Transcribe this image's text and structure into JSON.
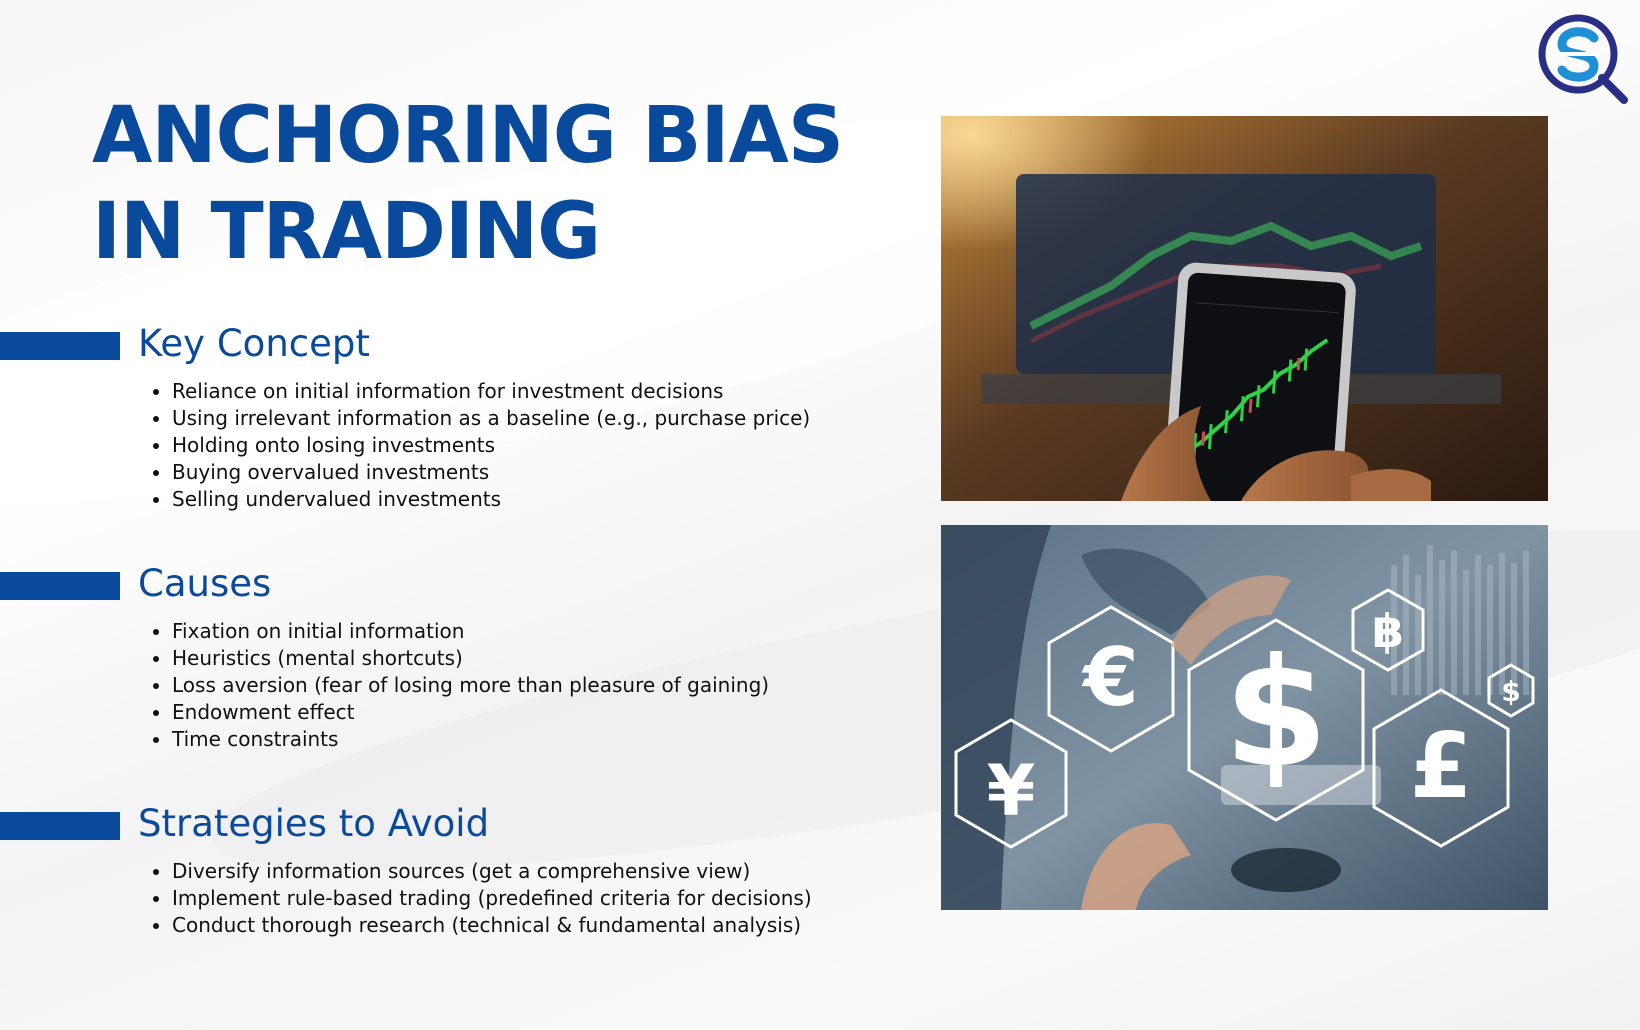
{
  "title": "ANCHORING BIAS IN TRADING",
  "sections": [
    {
      "heading": "Key Concept",
      "items": [
        "Reliance on initial information for investment decisions",
        "Using irrelevant information as a baseline (e.g., purchase price)",
        "Holding onto losing investments",
        "Buying overvalued investments",
        "Selling undervalued investments"
      ]
    },
    {
      "heading": "Causes",
      "items": [
        "Fixation on initial information",
        "Heuristics (mental shortcuts)",
        "Loss aversion (fear of losing more than pleasure of gaining)",
        "Endowment effect",
        "Time constraints"
      ]
    },
    {
      "heading": "Strategies to Avoid",
      "items": [
        "Diversify information sources (get a comprehensive view)",
        "Implement rule-based trading (predefined criteria for decisions)",
        "Conduct thorough research (technical & fundamental analysis)"
      ]
    }
  ],
  "currency_symbols": [
    "€",
    "$",
    "¥",
    "£",
    "฿",
    "$"
  ],
  "colors": {
    "brand": "#0a4a9c",
    "text": "#111111",
    "logo_ring": "#2a2f86",
    "logo_s": "#1f8fd6"
  },
  "icons": [
    "company-logo-icon",
    "trading-phone-photo",
    "currency-hexagons-photo"
  ]
}
